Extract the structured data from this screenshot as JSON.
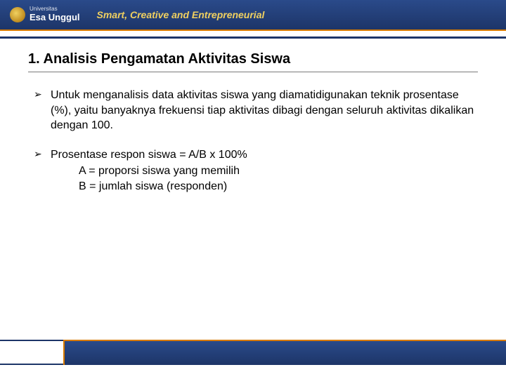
{
  "header": {
    "university_small": "Universitas",
    "university_name": "Esa Unggul",
    "tagline": "Smart, Creative and Entrepreneurial"
  },
  "slide": {
    "title": "1.  Analisis Pengamatan Aktivitas Siswa",
    "bullets": [
      {
        "text": "Untuk menganalisis data aktivitas siswa yang diamatidigunakan teknik prosentase (%), yaitu banyaknya frekuensi tiap aktivitas dibagi dengan seluruh aktivitas dikalikan dengan 100."
      },
      {
        "text": "Prosentase respon siswa   =   A/B  x 100%",
        "sub": [
          "A  =  proporsi siswa yang memilih",
          "B  =  jumlah siswa (responden)"
        ]
      }
    ]
  },
  "colors": {
    "header_bg_top": "#2a4a8a",
    "header_bg_bottom": "#1d3568",
    "accent_orange": "#d87a00",
    "tagline_color": "#f0d060",
    "text": "#000000",
    "background": "#ffffff"
  }
}
